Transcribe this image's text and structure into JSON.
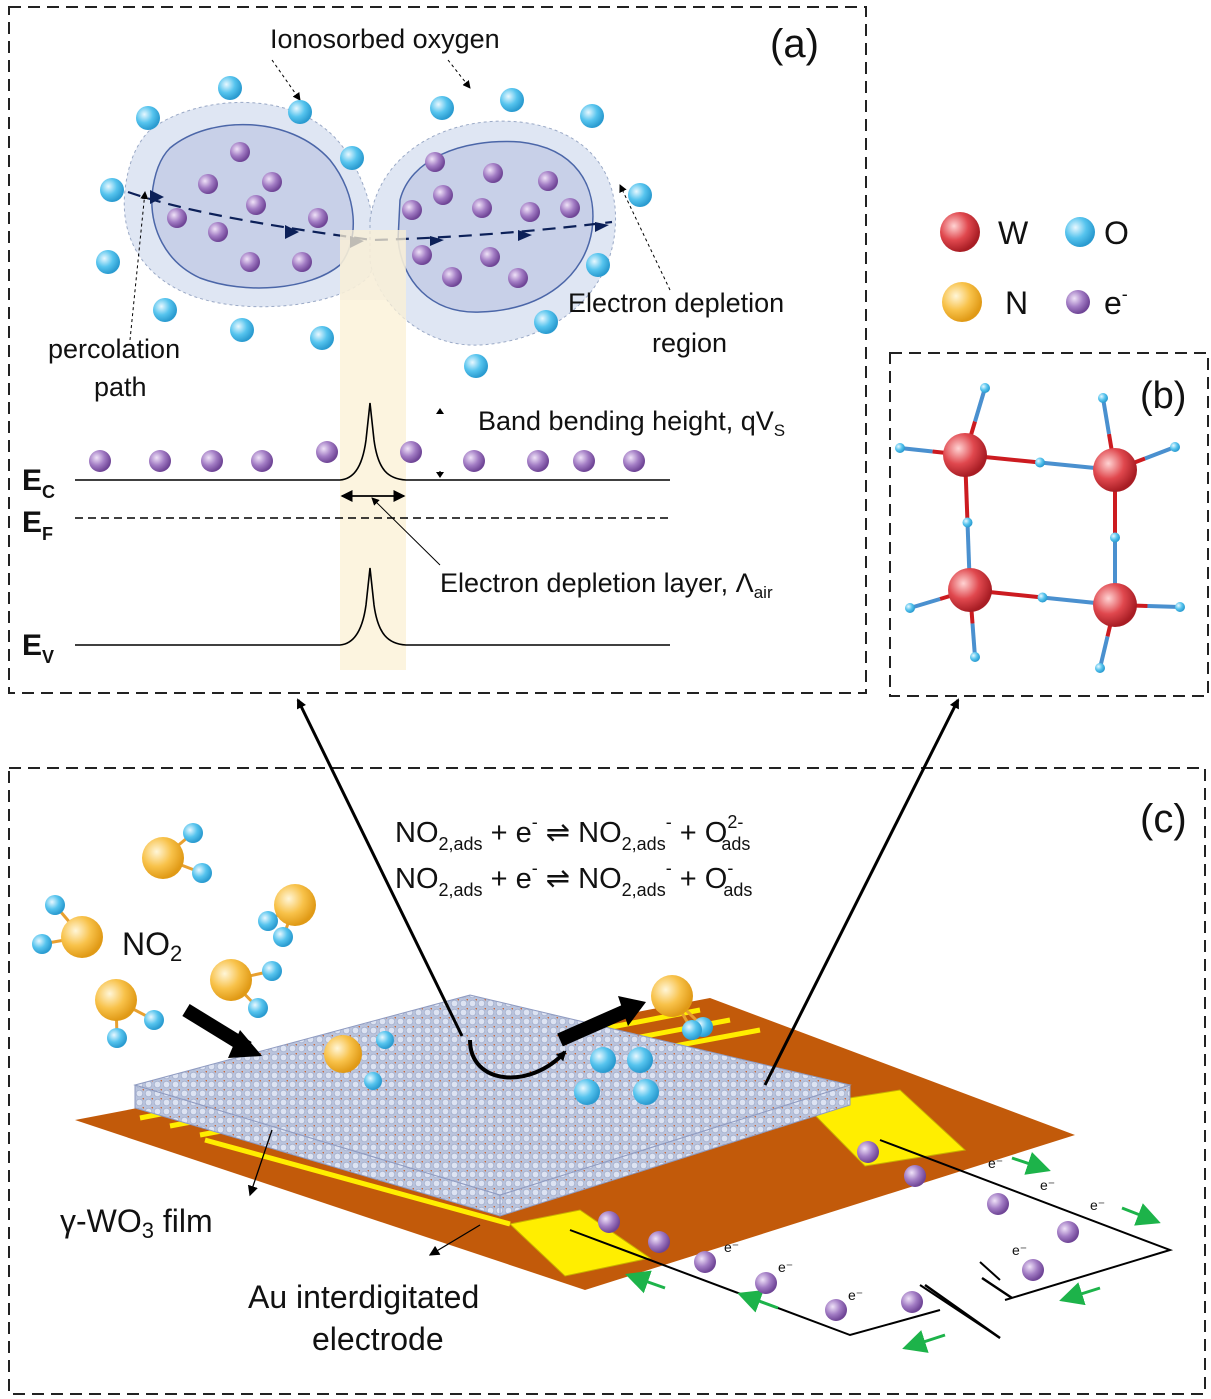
{
  "panel_a": {
    "tag": "(a)",
    "ionosorbed_oxygen": "Ionosorbed oxygen",
    "percolation_path_1": "percolation",
    "percolation_path_2": "path",
    "depletion_region_1": "Electron depletion",
    "depletion_region_2": "region",
    "band_bending": "Band bending height, qV",
    "band_bending_sub": "S",
    "depletion_layer": "Electron depletion layer, Λ",
    "depletion_layer_sub": "air",
    "ec": "E",
    "ec_sub": "C",
    "ef": "E",
    "ef_sub": "F",
    "ev": "E",
    "ev_sub": "V"
  },
  "legend": {
    "w": "W",
    "o": "O",
    "n": "N",
    "e": "e",
    "e_sup": "-",
    "colors": {
      "w": "#d9363e",
      "o": "#3fb8e8",
      "n": "#f5b533",
      "e": "#9466b8"
    }
  },
  "panel_b": {
    "tag": "(b)"
  },
  "panel_c": {
    "tag": "(c)",
    "eq1": {
      "a": "NO",
      "a_sub": "2,ads",
      "b": " + e",
      "b_sup": "-",
      "arrow": " ⇌ ",
      "c": "NO",
      "c_sub": "2,ads",
      "c_sup": "-",
      "d": " + O",
      "d_sup": "2-",
      "d_sub": "ads"
    },
    "eq2": {
      "a": "NO",
      "a_sub": "2,ads",
      "b": " + e",
      "b_sup": "-",
      "arrow": " ⇌ ",
      "c": "NO",
      "c_sub": "2,ads",
      "c_sup": "-",
      "d": " + O",
      "d_sup": "-",
      "d_sub": "ads"
    },
    "no2": "NO",
    "no2_sub": "2",
    "film_label": "γ-WO",
    "film_sub": "3",
    "film_tail": " film",
    "electrode_1": "Au interdigitated",
    "electrode_2": "electrode",
    "e_marks": [
      "e⁻",
      "e⁻",
      "e⁻",
      "e⁻",
      "e⁻",
      "e⁻",
      "e⁻"
    ]
  }
}
